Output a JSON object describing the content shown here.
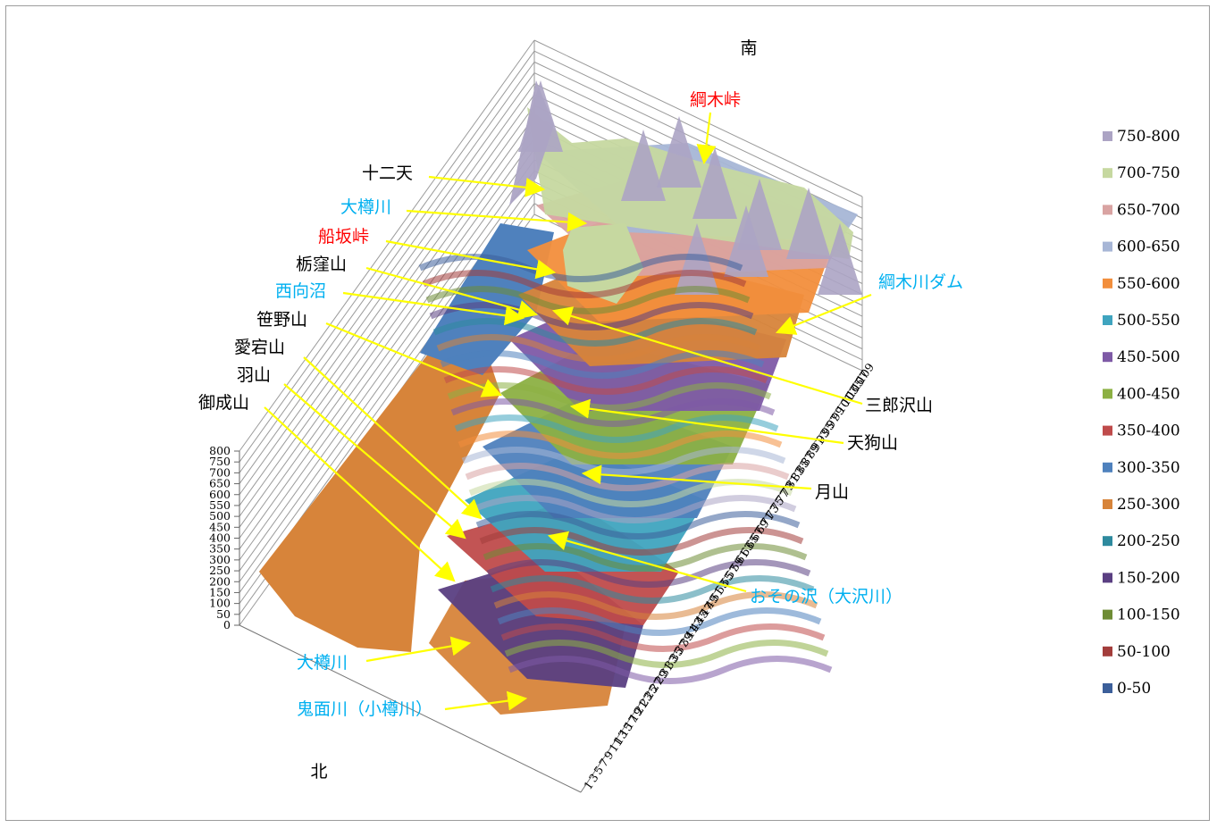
{
  "chart_data": {
    "type": "surface",
    "directions": {
      "south": "南",
      "north": "北"
    },
    "z_axis_ticks": [
      0,
      50,
      100,
      150,
      200,
      250,
      300,
      350,
      400,
      450,
      500,
      550,
      600,
      650,
      700,
      750,
      800
    ],
    "zlim": [
      0,
      800
    ],
    "x_axis_range": [
      1,
      109
    ],
    "legend": [
      {
        "label": "750-800",
        "color": "#aca4c4"
      },
      {
        "label": "700-750",
        "color": "#c6d8a0"
      },
      {
        "label": "650-700",
        "color": "#d9a3a2"
      },
      {
        "label": "600-650",
        "color": "#a7b6d6"
      },
      {
        "label": "550-600",
        "color": "#f28e3c"
      },
      {
        "label": "500-550",
        "color": "#3fa4bf"
      },
      {
        "label": "450-500",
        "color": "#7e5aa6"
      },
      {
        "label": "400-450",
        "color": "#8cb043"
      },
      {
        "label": "350-400",
        "color": "#bf4b4b"
      },
      {
        "label": "300-350",
        "color": "#4f81bd"
      },
      {
        "label": "250-300",
        "color": "#d7843a"
      },
      {
        "label": "200-250",
        "color": "#2e8a9e"
      },
      {
        "label": "150-200",
        "color": "#5a3f82"
      },
      {
        "label": "100-150",
        "color": "#6e8c34"
      },
      {
        "label": "50-100",
        "color": "#a33d3b"
      },
      {
        "label": "0-50",
        "color": "#3c5f9a"
      }
    ],
    "annotations": [
      {
        "text": "綱木峠",
        "color": "#ff0000"
      },
      {
        "text": "十二天",
        "color": "#000000"
      },
      {
        "text": "大樽川",
        "color": "#00b0f0"
      },
      {
        "text": "船坂峠",
        "color": "#ff0000"
      },
      {
        "text": "栃窪山",
        "color": "#000000"
      },
      {
        "text": "西向沼",
        "color": "#00b0f0"
      },
      {
        "text": "笹野山",
        "color": "#000000"
      },
      {
        "text": "愛宕山",
        "color": "#000000"
      },
      {
        "text": "羽山",
        "color": "#000000"
      },
      {
        "text": "御成山",
        "color": "#000000"
      },
      {
        "text": "綱木川ダム",
        "color": "#00b0f0"
      },
      {
        "text": "三郎沢山",
        "color": "#000000"
      },
      {
        "text": "天狗山",
        "color": "#000000"
      },
      {
        "text": "月山",
        "color": "#000000"
      },
      {
        "text": "おその沢（大沢川）",
        "color": "#00b0f0"
      },
      {
        "text": "大樽川",
        "color": "#00b0f0"
      },
      {
        "text": "鬼面川（小樽川）",
        "color": "#00b0f0"
      }
    ]
  },
  "colors": {
    "arrow": "#ffff00",
    "grid": "#9a9a9a"
  }
}
